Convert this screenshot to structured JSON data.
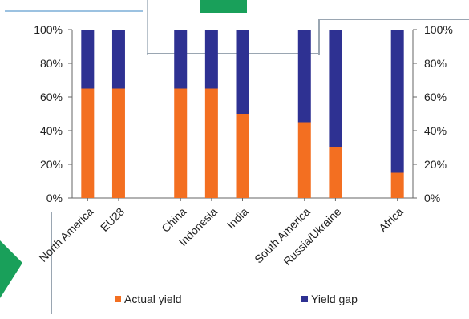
{
  "chart_data": {
    "type": "bar",
    "stacked": true,
    "percent_scale": true,
    "categories": [
      "North America",
      "EU28",
      "",
      "China",
      "Indonesia",
      "India",
      "",
      "South America",
      "Russia/Ukraine",
      "",
      "Africa"
    ],
    "series": [
      {
        "name": "Actual yield",
        "color": "#f36f21",
        "values": [
          65,
          65,
          null,
          65,
          65,
          50,
          null,
          45,
          30,
          null,
          15
        ]
      },
      {
        "name": "Yield gap",
        "color": "#2e3192",
        "values": [
          35,
          35,
          null,
          35,
          35,
          50,
          null,
          55,
          70,
          null,
          85
        ]
      }
    ],
    "y_ticks": [
      "0%",
      "20%",
      "40%",
      "60%",
      "80%",
      "100%"
    ],
    "y2_ticks": [
      "0%",
      "20%",
      "40%",
      "60%",
      "80%",
      "100%"
    ],
    "ylim": [
      0,
      100
    ],
    "grid": false,
    "legend_position": "bottom"
  },
  "colors": {
    "decor_green": "#19a05a",
    "decor_border": "#4a90c8"
  }
}
